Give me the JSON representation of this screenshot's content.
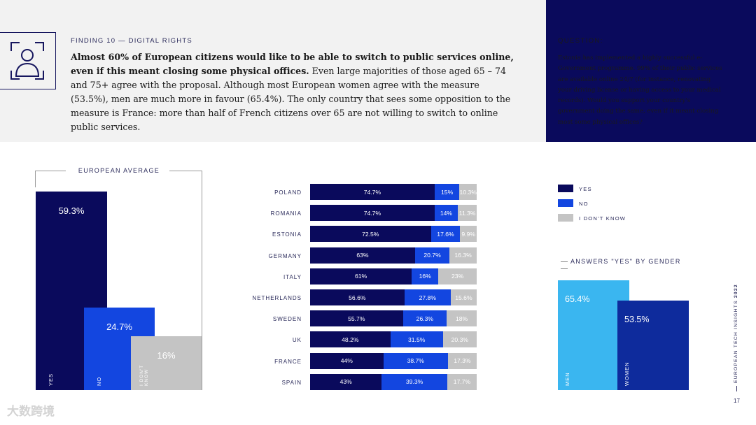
{
  "finding": {
    "label": "FINDING 10 — DIGITAL RIGHTS",
    "headline": "Almost 60% of European citizens would like to be able to switch to public services online, even if this meant closing some physical offices.",
    "body": " Even large majorities of those aged 65 – 74 and 75+ agree with the proposal. Although most European women agree with the measure (53.5%), men are much more in favour (65.4%). The only country that sees some opposition to the measure is France: more than half of French citizens over 65 are not willing to switch to online public services."
  },
  "question": {
    "label": "QUESTION:",
    "text": "Estonia has implemented a highly successful e-Government programme. 99% of their public services are available online 24/7 (for instance, renovating your driving license or having access to your medical records). Would you support your country's government doing the same, even if it meant closing most some physical offices?"
  },
  "icons": {
    "finding_icon": "person-frame-icon"
  },
  "colors": {
    "yes": "#0a0a5c",
    "no": "#1346e0",
    "dont_know": "#c4c4c4",
    "men": "#3ab6f0",
    "women": "#0e2b9c"
  },
  "chart_data": [
    {
      "type": "bar",
      "title": "EUROPEAN AVERAGE",
      "categories": [
        "YES",
        "NO",
        "I DON'T KNOW"
      ],
      "values": [
        59.3,
        24.7,
        16
      ],
      "value_labels": [
        "59.3%",
        "24.7%",
        "16%"
      ],
      "ylim": [
        0,
        70
      ]
    },
    {
      "type": "bar",
      "orientation": "horizontal",
      "stacked": true,
      "categories": [
        "POLAND",
        "ROMANIA",
        "ESTONIA",
        "GERMANY",
        "ITALY",
        "NETHERLANDS",
        "SWEDEN",
        "UK",
        "FRANCE",
        "SPAIN"
      ],
      "legend": [
        "YES",
        "NO",
        "I DON'T KNOW"
      ],
      "series": [
        {
          "name": "YES",
          "values": [
            74.7,
            74.7,
            72.5,
            63,
            61,
            56.6,
            55.7,
            48.2,
            44,
            43
          ],
          "labels": [
            "74.7%",
            "74.7%",
            "72.5%",
            "63%",
            "61%",
            "56.6%",
            "55.7%",
            "48.2%",
            "44%",
            "43%"
          ]
        },
        {
          "name": "NO",
          "values": [
            15,
            14,
            17.6,
            20.7,
            16,
            27.8,
            26.3,
            31.5,
            38.7,
            39.3
          ],
          "labels": [
            "15%",
            "14%",
            "17.6%",
            "20.7%",
            "16%",
            "27.8%",
            "26.3%",
            "31.5%",
            "38.7%",
            "39.3%"
          ]
        },
        {
          "name": "I DON'T KNOW",
          "values": [
            10.3,
            11.3,
            9.9,
            16.3,
            23,
            15.6,
            18,
            20.3,
            17.3,
            17.7
          ],
          "labels": [
            "10.3%",
            "11.3%",
            "9.9%",
            "16.3%",
            "23%",
            "15.6%",
            "18%",
            "20.3%",
            "17.3%",
            "17.7%"
          ]
        }
      ]
    },
    {
      "type": "bar",
      "title": "ANSWERS \"YES\" BY GENDER",
      "categories": [
        "MEN",
        "WOMEN"
      ],
      "values": [
        65.4,
        53.5
      ],
      "value_labels": [
        "65.4%",
        "53.5%"
      ],
      "ylim": [
        0,
        70
      ]
    }
  ],
  "legend": {
    "yes": "YES",
    "no": "NO",
    "dont_know": "I DON'T KNOW"
  },
  "sidebar": {
    "report": "EUROPEAN TECH INSIGHTS",
    "year": "2022",
    "page": "17"
  },
  "watermark": "大数跨境"
}
